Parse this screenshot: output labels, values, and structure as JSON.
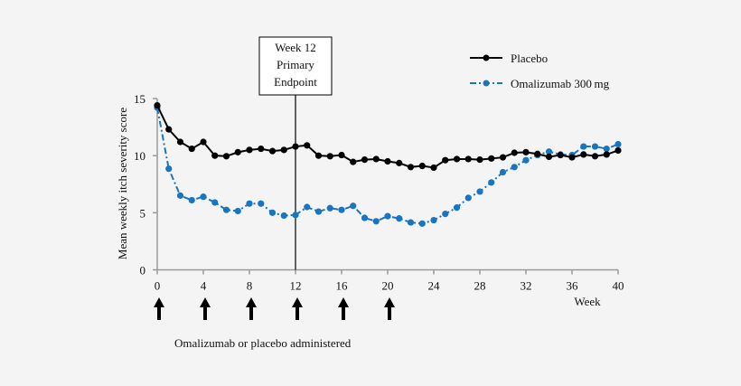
{
  "chart_data": {
    "type": "line",
    "title": "",
    "xlabel": "Week",
    "ylabel": "Mean weekly itch severity score",
    "xlim": [
      0,
      40
    ],
    "ylim": [
      0,
      15
    ],
    "xticks": [
      0,
      4,
      8,
      12,
      16,
      20,
      24,
      28,
      32,
      36,
      40
    ],
    "yticks": [
      0,
      5,
      10,
      15
    ],
    "grid": false,
    "legend_position": "top-right",
    "x": [
      0,
      1,
      2,
      3,
      4,
      5,
      6,
      7,
      8,
      9,
      10,
      11,
      12,
      13,
      14,
      15,
      16,
      17,
      18,
      19,
      20,
      21,
      22,
      23,
      24,
      25,
      26,
      27,
      28,
      29,
      30,
      31,
      32,
      33,
      34,
      35,
      36,
      37,
      38,
      39,
      40
    ],
    "series": [
      {
        "name": "Placebo",
        "color": "#000000",
        "style": "solid",
        "values": [
          14.4,
          12.3,
          11.2,
          10.6,
          11.2,
          10.0,
          9.95,
          10.3,
          10.5,
          10.6,
          10.4,
          10.5,
          10.8,
          10.9,
          10.0,
          9.95,
          10.05,
          9.45,
          9.65,
          9.7,
          9.5,
          9.35,
          9.0,
          9.1,
          8.95,
          9.6,
          9.7,
          9.7,
          9.65,
          9.75,
          9.85,
          10.25,
          10.3,
          10.15,
          9.9,
          10.05,
          9.85,
          10.1,
          9.95,
          10.1,
          10.45
        ]
      },
      {
        "name": "Omalizumab 300 mg",
        "color": "#1a75c0",
        "style": "dash-dot",
        "values": [
          14.2,
          8.85,
          6.5,
          6.1,
          6.4,
          5.9,
          5.25,
          5.15,
          5.8,
          5.8,
          5.0,
          4.75,
          4.8,
          5.5,
          5.1,
          5.4,
          5.25,
          5.6,
          4.55,
          4.25,
          4.7,
          4.5,
          4.15,
          4.05,
          4.35,
          4.9,
          5.45,
          6.3,
          6.85,
          7.65,
          8.55,
          9.0,
          9.6,
          10.05,
          10.35,
          10.1,
          10.05,
          10.8,
          10.8,
          10.6,
          11.0
        ]
      }
    ],
    "annotations": {
      "endpoint_week": 12,
      "endpoint_label": [
        "Week 12",
        "Primary",
        "Endpoint"
      ],
      "dose_weeks": [
        0,
        4,
        8,
        12,
        16,
        20
      ],
      "dose_label": "Omalizumab or placebo administered"
    }
  }
}
